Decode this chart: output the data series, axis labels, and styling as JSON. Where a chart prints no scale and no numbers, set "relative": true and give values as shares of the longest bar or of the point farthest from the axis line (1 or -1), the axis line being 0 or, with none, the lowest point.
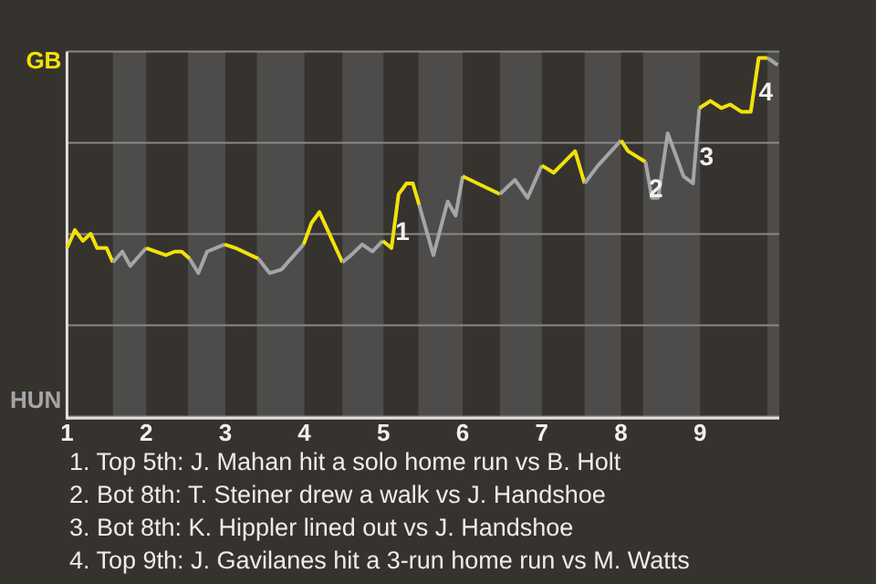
{
  "chart_data": {
    "type": "line",
    "relative": true,
    "series": [
      {
        "color": "#f2e20a",
        "x": [
          1.0,
          1.1,
          1.2,
          1.3,
          1.38,
          1.5,
          1.58
        ],
        "values": [
          0.47,
          0.52,
          0.49,
          0.51,
          0.47,
          0.47,
          0.43
        ]
      },
      {
        "color": "#a3a6a8",
        "x": [
          1.58,
          1.7,
          1.8,
          2.0
        ],
        "values": [
          0.43,
          0.46,
          0.42,
          0.47
        ]
      },
      {
        "color": "#f2e20a",
        "x": [
          2.0,
          2.25,
          2.36,
          2.45,
          2.55
        ],
        "values": [
          0.47,
          0.45,
          0.46,
          0.46,
          0.44
        ]
      },
      {
        "color": "#a3a6a8",
        "x": [
          2.55,
          2.66,
          2.77,
          2.99
        ],
        "values": [
          0.44,
          0.4,
          0.46,
          0.48
        ]
      },
      {
        "color": "#f2e20a",
        "x": [
          2.99,
          3.13,
          3.42
        ],
        "values": [
          0.48,
          0.47,
          0.44
        ]
      },
      {
        "color": "#a3a6a8",
        "x": [
          3.42,
          3.56,
          3.71,
          3.99
        ],
        "values": [
          0.44,
          0.4,
          0.41,
          0.48
        ]
      },
      {
        "color": "#f2e20a",
        "x": [
          3.99,
          4.09,
          4.19,
          4.48
        ],
        "values": [
          0.48,
          0.54,
          0.57,
          0.43
        ]
      },
      {
        "color": "#a3a6a8",
        "x": [
          4.48,
          4.59,
          4.73,
          4.86,
          4.99
        ],
        "values": [
          0.43,
          0.45,
          0.48,
          0.46,
          0.49
        ]
      },
      {
        "color": "#f2e20a",
        "x": [
          4.99,
          5.1,
          5.19,
          5.29,
          5.37,
          5.45
        ],
        "values": [
          0.49,
          0.47,
          0.62,
          0.65,
          0.65,
          0.59
        ]
      },
      {
        "color": "#a3a6a8",
        "x": [
          5.45,
          5.63,
          5.81,
          5.91,
          6.0
        ],
        "values": [
          0.59,
          0.45,
          0.6,
          0.56,
          0.67
        ]
      },
      {
        "color": "#f2e20a",
        "x": [
          6.0,
          6.47
        ],
        "values": [
          0.67,
          0.62
        ]
      },
      {
        "color": "#a3a6a8",
        "x": [
          6.47,
          6.66,
          6.82,
          7.0
        ],
        "values": [
          0.62,
          0.66,
          0.61,
          0.7
        ]
      },
      {
        "color": "#f2e20a",
        "x": [
          7.0,
          7.15,
          7.42,
          7.54
        ],
        "values": [
          0.7,
          0.68,
          0.74,
          0.65
        ]
      },
      {
        "color": "#a3a6a8",
        "x": [
          7.54,
          7.71,
          8.0
        ],
        "values": [
          0.65,
          0.7,
          0.77
        ]
      },
      {
        "color": "#f2e20a",
        "x": [
          8.0,
          8.09,
          8.31
        ],
        "values": [
          0.77,
          0.74,
          0.71
        ]
      },
      {
        "color": "#a3a6a8",
        "x": [
          8.31,
          8.39,
          8.47,
          8.59,
          8.79,
          8.91,
          8.99
        ],
        "values": [
          0.71,
          0.61,
          0.61,
          0.79,
          0.67,
          0.65,
          0.86
        ]
      },
      {
        "color": "#f2e20a",
        "x": [
          8.99,
          9.13,
          9.27,
          9.38,
          9.52,
          9.64,
          9.74,
          9.85
        ],
        "values": [
          0.86,
          0.88,
          0.86,
          0.87,
          0.85,
          0.85,
          1,
          1
        ]
      },
      {
        "color": "#a3a6a8",
        "x": [
          9.85,
          9.98
        ],
        "values": [
          1,
          0.98
        ]
      }
    ],
    "xlim": [
      1,
      10
    ],
    "xticks": [
      1,
      2,
      3,
      4,
      5,
      6,
      7,
      8,
      9
    ],
    "grid": "y",
    "marker": "none",
    "line_style": "solid",
    "bands": [
      {
        "axis": "x",
        "from": 1.58,
        "to": 2.0,
        "color": "#4d4c4a"
      },
      {
        "axis": "x",
        "from": 2.53,
        "to": 3.0,
        "color": "#4d4c4a"
      },
      {
        "axis": "x",
        "from": 3.4,
        "to": 4.0,
        "color": "#4d4c4a"
      },
      {
        "axis": "x",
        "from": 4.48,
        "to": 5.0,
        "color": "#4d4c4a"
      },
      {
        "axis": "x",
        "from": 5.44,
        "to": 6.0,
        "color": "#4d4c4a"
      },
      {
        "axis": "x",
        "from": 6.47,
        "to": 7.0,
        "color": "#4d4c4a"
      },
      {
        "axis": "x",
        "from": 7.54,
        "to": 8.0,
        "color": "#4d4c4a"
      },
      {
        "axis": "x",
        "from": 8.28,
        "to": 9.0,
        "color": "#4d4c4a"
      },
      {
        "axis": "x",
        "from": 9.85,
        "to": 10,
        "color": "#4d4c4a"
      }
    ],
    "annotations": [
      "GB",
      "HUN",
      {
        "text": "1",
        "x": 5.24,
        "y": 0.51
      },
      {
        "text": "2",
        "x": 8.44,
        "y": 0.63
      },
      {
        "text": "3",
        "x": 9.08,
        "y": 0.72
      },
      {
        "text": "4",
        "x": 9.83,
        "y": 0.9
      },
      "1. Top 5th: J. Mahan hit a solo home run vs B. Holt",
      "2. Bot 8th: T. Steiner drew a walk vs J. Handshoe",
      "3. Bot 8th: K. Hippler lined out vs J. Handshoe",
      "4. Top 9th: J. Gavilanes hit a 3-run home run vs M. Watts"
    ]
  }
}
